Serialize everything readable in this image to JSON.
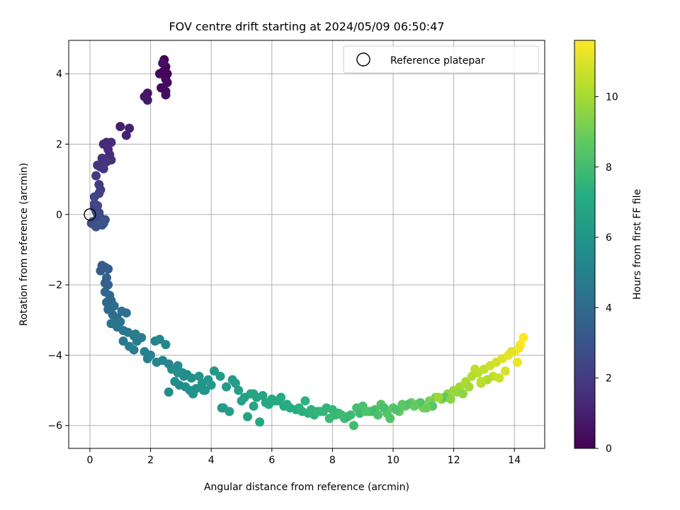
{
  "chart_data": {
    "type": "scatter",
    "title": "FOV centre drift starting at 2024/05/09 06:50:47",
    "xlabel": "Angular distance from reference (arcmin)",
    "ylabel": "Rotation from reference (arcmin)",
    "xlim": [
      -0.7,
      15.0
    ],
    "ylim": [
      -6.65,
      4.95
    ],
    "x_ticks": [
      0,
      2,
      4,
      6,
      8,
      10,
      12,
      14
    ],
    "y_ticks": [
      -6,
      -4,
      -2,
      0,
      2,
      4
    ],
    "x_tick_labels": [
      "0",
      "2",
      "4",
      "6",
      "8",
      "10",
      "12",
      "14"
    ],
    "y_tick_labels": [
      "−6",
      "−4",
      "−2",
      "0",
      "2",
      "4"
    ],
    "grid": true,
    "legend": {
      "position": "top-right",
      "entries": [
        {
          "label": "Reference platepar",
          "marker": "open-circle"
        }
      ]
    },
    "reference_point": {
      "x": 0,
      "y": 0
    },
    "colorbar": {
      "label": "Hours from first FF file",
      "min": 0,
      "max": 11.6,
      "colormap": "viridis",
      "ticks": [
        0,
        2,
        4,
        6,
        8,
        10
      ],
      "tick_labels": [
        "0",
        "2",
        "4",
        "6",
        "8",
        "10"
      ]
    },
    "series": [
      {
        "color_by": "hours",
        "x": [
          2.45,
          2.5,
          2.4,
          2.55,
          2.3,
          2.5,
          2.35,
          2.5,
          2.55,
          2.5,
          2.4,
          1.9,
          1.8,
          1.9,
          1.0,
          1.3,
          1.2,
          0.55,
          0.45,
          0.6,
          0.7,
          0.65,
          0.7,
          0.4,
          0.35,
          0.55,
          0.45,
          0.25,
          0.2,
          0.3,
          0.3,
          0.35,
          0.15,
          0.15,
          0.2,
          0.25,
          0.35,
          0.45,
          0.5,
          0.1,
          0.15,
          0.15,
          0.25,
          0.3,
          0.05,
          0.2,
          0.4,
          0.45,
          0.4,
          0.35,
          0.5,
          0.6,
          0.55,
          0.5,
          0.6,
          0.5,
          0.65,
          0.55,
          0.7,
          0.6,
          0.8,
          0.75,
          0.9,
          1.05,
          1.2,
          0.7,
          0.9,
          1.0,
          1.1,
          1.25,
          1.45,
          1.55,
          1.7,
          1.1,
          1.3,
          1.45,
          1.5,
          1.8,
          1.9,
          2.0,
          2.2,
          2.4,
          2.6,
          2.15,
          2.3,
          2.5,
          2.7,
          2.9,
          3.05,
          3.1,
          3.2,
          3.35,
          2.8,
          2.95,
          3.15,
          3.3,
          3.5,
          2.6,
          2.9,
          3.4,
          3.6,
          3.7,
          3.9,
          4.1,
          3.8,
          4.0,
          4.3,
          4.5,
          4.7,
          4.9,
          4.4,
          4.6,
          5.1,
          5.0,
          5.3,
          5.5,
          5.7,
          5.2,
          5.4,
          5.6,
          5.8,
          6.0,
          6.2,
          6.4,
          6.6,
          6.8,
          7.0,
          7.2,
          7.4,
          7.6,
          7.8,
          8.0,
          8.2,
          8.4,
          8.6,
          8.8,
          9.0,
          9.2,
          9.4,
          9.6,
          9.8,
          10.0,
          10.2,
          10.4,
          10.6,
          10.8,
          11.0,
          11.2,
          11.4,
          11.6,
          11.8,
          12.0,
          12.2,
          12.4,
          12.6,
          12.8,
          13.0,
          13.2,
          13.4,
          13.6,
          13.8,
          14.0,
          14.2,
          6.5,
          6.9,
          7.3,
          7.7,
          8.1,
          8.5,
          8.9,
          9.3,
          9.7,
          10.1,
          10.5,
          10.9,
          11.3,
          11.7,
          12.1,
          12.5,
          12.9,
          13.3,
          13.7,
          14.1,
          4.8,
          5.4,
          6.1,
          7.1,
          8.3,
          9.1,
          10.3,
          11.1,
          12.3,
          13.1,
          14.3,
          13.9,
          12.7,
          11.5,
          4.35,
          5.9,
          7.5,
          8.7,
          9.9,
          11.9,
          13.5,
          14.15,
          3.75,
          6.3,
          7.9,
          9.5,
          10.7,
          12.9
        ],
        "y": [
          4.4,
          4.2,
          4.05,
          4.0,
          4.0,
          3.85,
          3.6,
          3.5,
          3.75,
          3.4,
          4.3,
          3.45,
          3.35,
          3.25,
          2.5,
          2.45,
          2.25,
          2.05,
          2.0,
          1.85,
          2.05,
          1.7,
          1.55,
          1.6,
          1.35,
          1.5,
          1.3,
          1.4,
          1.1,
          0.85,
          0.6,
          0.7,
          0.5,
          0.3,
          0.1,
          0.0,
          -0.1,
          -0.25,
          -0.15,
          -0.2,
          -0.3,
          0.2,
          0.25,
          0.05,
          -0.25,
          -0.35,
          -0.3,
          -0.2,
          -1.45,
          -1.6,
          -1.5,
          -1.55,
          -1.8,
          -1.95,
          -2.0,
          -2.2,
          -2.3,
          -2.5,
          -2.45,
          -2.7,
          -2.6,
          -2.85,
          -2.95,
          -2.75,
          -2.8,
          -3.1,
          -3.2,
          -3.05,
          -3.3,
          -3.35,
          -3.45,
          -3.6,
          -3.5,
          -3.6,
          -3.75,
          -3.85,
          -3.4,
          -3.9,
          -4.1,
          -4.0,
          -4.2,
          -4.15,
          -4.25,
          -3.6,
          -3.55,
          -3.7,
          -4.4,
          -4.3,
          -4.5,
          -4.6,
          -4.55,
          -4.65,
          -4.75,
          -4.85,
          -4.9,
          -5.0,
          -4.95,
          -5.05,
          -4.5,
          -5.1,
          -4.6,
          -4.8,
          -4.7,
          -4.45,
          -5.0,
          -4.85,
          -4.6,
          -4.9,
          -4.7,
          -5.0,
          -5.5,
          -5.6,
          -5.2,
          -5.3,
          -5.1,
          -5.2,
          -5.15,
          -5.75,
          -5.45,
          -5.9,
          -5.35,
          -5.25,
          -5.3,
          -5.45,
          -5.5,
          -5.55,
          -5.6,
          -5.65,
          -5.7,
          -5.6,
          -5.5,
          -5.55,
          -5.65,
          -5.8,
          -5.7,
          -5.5,
          -5.45,
          -5.6,
          -5.55,
          -5.4,
          -5.65,
          -5.5,
          -5.6,
          -5.45,
          -5.35,
          -5.4,
          -5.5,
          -5.3,
          -5.2,
          -5.25,
          -5.1,
          -5.0,
          -4.9,
          -4.75,
          -4.6,
          -4.5,
          -4.4,
          -4.3,
          -4.2,
          -4.1,
          -4.0,
          -3.9,
          -3.7,
          -5.4,
          -5.5,
          -5.55,
          -5.6,
          -5.7,
          -5.75,
          -5.65,
          -5.6,
          -5.5,
          -5.55,
          -5.4,
          -5.35,
          -5.45,
          -5.2,
          -5.05,
          -4.9,
          -4.8,
          -4.6,
          -4.45,
          -4.2,
          -4.8,
          -5.1,
          -5.3,
          -5.3,
          -5.7,
          -5.6,
          -5.4,
          -5.5,
          -5.1,
          -4.7,
          -3.5,
          -3.9,
          -4.4,
          -5.2,
          -5.5,
          -5.4,
          -5.6,
          -6.0,
          -5.8,
          -5.25,
          -4.65,
          -3.8,
          -5.0,
          -5.2,
          -5.8,
          -5.7,
          -5.45,
          -4.75
        ],
        "hours": [
          0.0,
          0.05,
          0.1,
          0.15,
          0.2,
          0.25,
          0.3,
          0.35,
          0.4,
          0.45,
          0.5,
          0.7,
          0.75,
          0.8,
          1.0,
          1.05,
          1.1,
          1.3,
          1.35,
          1.4,
          1.45,
          1.5,
          1.55,
          1.6,
          1.7,
          1.75,
          1.8,
          1.85,
          1.95,
          2.05,
          2.15,
          2.2,
          2.3,
          2.4,
          2.5,
          2.55,
          2.6,
          2.7,
          2.75,
          2.8,
          2.85,
          2.35,
          2.45,
          2.5,
          2.65,
          2.9,
          2.95,
          3.0,
          3.3,
          3.35,
          3.4,
          3.45,
          3.55,
          3.6,
          3.65,
          3.75,
          3.8,
          3.9,
          3.95,
          4.05,
          4.1,
          4.15,
          4.25,
          4.3,
          4.35,
          4.4,
          4.45,
          4.5,
          4.55,
          4.6,
          4.7,
          4.75,
          4.8,
          4.65,
          4.85,
          4.9,
          4.95,
          5.0,
          5.05,
          5.1,
          5.2,
          5.25,
          5.3,
          5.15,
          5.35,
          5.4,
          5.45,
          5.5,
          5.55,
          5.6,
          5.65,
          5.7,
          5.55,
          5.6,
          5.75,
          5.8,
          5.85,
          5.5,
          5.7,
          5.9,
          5.95,
          6.0,
          6.1,
          6.15,
          6.05,
          6.2,
          6.3,
          6.35,
          6.4,
          6.45,
          6.25,
          6.5,
          6.55,
          6.6,
          6.65,
          6.7,
          6.75,
          6.7,
          6.8,
          6.85,
          6.9,
          6.95,
          7.0,
          7.05,
          7.1,
          7.2,
          7.25,
          7.35,
          7.45,
          7.5,
          7.6,
          7.65,
          7.75,
          7.85,
          7.95,
          8.05,
          8.1,
          8.2,
          8.3,
          8.4,
          8.5,
          8.6,
          8.7,
          8.8,
          8.9,
          9.0,
          9.1,
          9.2,
          9.35,
          9.5,
          9.65,
          9.8,
          9.95,
          10.1,
          10.25,
          10.4,
          10.55,
          10.7,
          10.85,
          11.0,
          11.2,
          11.4,
          11.55,
          7.15,
          7.3,
          7.4,
          7.55,
          7.7,
          7.8,
          7.9,
          8.0,
          8.15,
          8.25,
          8.35,
          8.45,
          8.55,
          8.65,
          9.75,
          10.0,
          10.3,
          10.6,
          10.9,
          11.3,
          6.45,
          6.75,
          7.05,
          7.4,
          7.9,
          8.3,
          8.6,
          8.95,
          9.6,
          10.2,
          11.6,
          11.1,
          10.45,
          9.85,
          6.3,
          6.95,
          7.6,
          8.0,
          8.4,
          9.55,
          10.65,
          11.45,
          6.05,
          7.0,
          7.8,
          8.2,
          8.75,
          10.35
        ]
      }
    ]
  }
}
